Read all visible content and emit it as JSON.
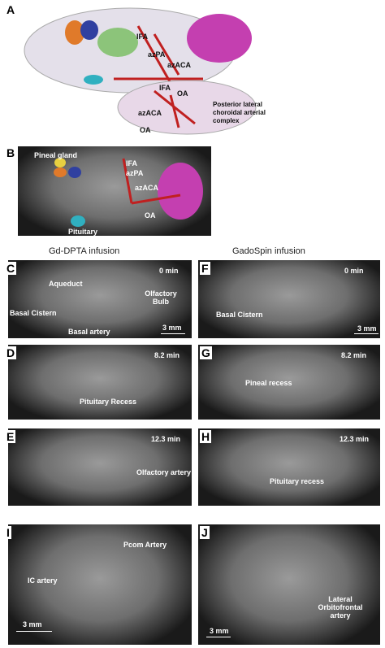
{
  "panel_a": {
    "letter": "A",
    "labels": [
      "IFA",
      "azPA",
      "azACA",
      "OA",
      "IFA",
      "azACA",
      "OA",
      "Posterior lateral choroidal arterial complex"
    ]
  },
  "panel_b": {
    "letter": "B",
    "labels": [
      "Pineal gland",
      "IFA",
      "azPA",
      "azACA",
      "OA",
      "Pituitary"
    ]
  },
  "columns": [
    "Gd-DPTA infusion",
    "GadoSpin infusion"
  ],
  "panel_c": {
    "letter": "C",
    "time": "0 min",
    "labels": [
      "Aqueduct",
      "Olfactory Bulb",
      "Basal Cistern",
      "Basal artery"
    ],
    "scale": "3 mm"
  },
  "panel_d": {
    "letter": "D",
    "time": "8.2 min",
    "labels": [
      "Pituitary Recess"
    ]
  },
  "panel_e": {
    "letter": "E",
    "time": "12.3 min",
    "labels": [
      "Olfactory artery"
    ]
  },
  "panel_f": {
    "letter": "F",
    "time": "0 min",
    "labels": [
      "Basal Cistern"
    ],
    "scale": "3 mm"
  },
  "panel_g": {
    "letter": "G",
    "time": "8.2 min",
    "labels": [
      "Pineal recess"
    ]
  },
  "panel_h": {
    "letter": "H",
    "time": "12.3 min",
    "labels": [
      "Pituitary recess"
    ]
  },
  "panel_i": {
    "letter": "I",
    "labels": [
      "Pcom Artery",
      "IC artery"
    ],
    "scale": "3 mm"
  },
  "panel_j": {
    "letter": "J",
    "labels": [
      "Lateral Orbitofrontal artery"
    ],
    "scale": "3 mm"
  }
}
